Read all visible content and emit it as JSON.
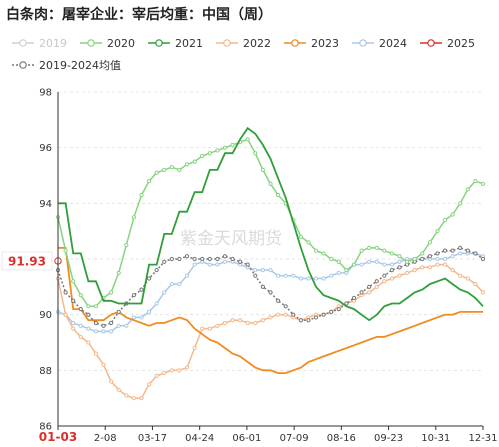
{
  "chart_data": {
    "type": "line",
    "title": "白条肉：屠宰企业：宰后均重：中国（周）",
    "watermark": "紫金天风期货",
    "ylim": [
      86,
      98
    ],
    "yticks": [
      86,
      88,
      90,
      92,
      94,
      96,
      98
    ],
    "xticks": [
      "01-03",
      "2-08",
      "03-17",
      "04-24",
      "06-01",
      "07-09",
      "08-16",
      "09-23",
      "10-31",
      "12-31"
    ],
    "highlight": {
      "x_label": "01-03",
      "y_label": "91.93",
      "color": "#d9302c"
    },
    "series": [
      {
        "name": "2019",
        "color": "#cfcfcf",
        "dash": "none",
        "marker": "circle",
        "values": []
      },
      {
        "name": "2020",
        "color": "#86d47f",
        "dash": "none",
        "marker": "circle",
        "values": [
          93.5,
          92.3,
          91.2,
          90.7,
          90.3,
          90.3,
          90.6,
          90.8,
          91.5,
          92.5,
          93.5,
          94.3,
          94.8,
          95.1,
          95.2,
          95.3,
          95.2,
          95.4,
          95.5,
          95.7,
          95.8,
          95.9,
          96.0,
          96.1,
          96.2,
          96.3,
          95.8,
          95.2,
          94.7,
          94.3,
          94.0,
          93.4,
          92.8,
          92.6,
          92.3,
          92.2,
          92.0,
          91.9,
          91.6,
          91.8,
          92.3,
          92.4,
          92.4,
          92.3,
          92.2,
          92.1,
          91.9,
          92.0,
          92.2,
          92.6,
          93.0,
          93.4,
          93.6,
          94.0,
          94.5,
          94.8,
          94.7
        ]
      },
      {
        "name": "2021",
        "color": "#2f9e3a",
        "dash": "none",
        "marker": "none",
        "values": [
          94.0,
          94.0,
          92.2,
          92.2,
          91.2,
          91.2,
          90.5,
          90.5,
          90.4,
          90.4,
          90.4,
          90.4,
          91.8,
          91.8,
          92.9,
          92.9,
          93.7,
          93.7,
          94.4,
          94.4,
          95.2,
          95.2,
          95.8,
          95.8,
          96.3,
          96.7,
          96.5,
          96.1,
          95.6,
          94.9,
          94.2,
          93.3,
          92.4,
          91.6,
          91.0,
          90.7,
          90.6,
          90.5,
          90.3,
          90.2,
          90.0,
          89.8,
          90.0,
          90.3,
          90.4,
          90.4,
          90.6,
          90.8,
          90.9,
          91.1,
          91.2,
          91.3,
          91.1,
          90.9,
          90.8,
          90.6,
          90.3
        ]
      },
      {
        "name": "2022",
        "color": "#f5b88a",
        "dash": "none",
        "marker": "circle",
        "values": [
          91.3,
          90.0,
          89.5,
          89.2,
          89.0,
          88.6,
          88.2,
          87.6,
          87.3,
          87.1,
          87.0,
          87.0,
          87.5,
          87.8,
          87.9,
          88.0,
          88.0,
          88.1,
          88.8,
          89.5,
          89.5,
          89.6,
          89.7,
          89.8,
          89.8,
          89.7,
          89.7,
          89.8,
          89.9,
          90.0,
          90.0,
          89.9,
          89.8,
          89.9,
          90.0,
          90.0,
          90.1,
          90.3,
          90.4,
          90.5,
          90.7,
          90.8,
          91.0,
          91.2,
          91.3,
          91.4,
          91.5,
          91.6,
          91.7,
          91.7,
          91.8,
          91.8,
          91.6,
          91.4,
          91.3,
          91.1,
          90.8
        ]
      },
      {
        "name": "2023",
        "color": "#f08c1e",
        "dash": "none",
        "marker": "none",
        "values": [
          92.4,
          92.4,
          90.2,
          90.2,
          89.8,
          89.8,
          89.8,
          90.0,
          90.1,
          89.9,
          89.8,
          89.7,
          89.6,
          89.7,
          89.7,
          89.8,
          89.9,
          89.8,
          89.5,
          89.3,
          89.1,
          89.0,
          88.8,
          88.6,
          88.5,
          88.3,
          88.1,
          88.0,
          88.0,
          87.9,
          87.9,
          88.0,
          88.1,
          88.3,
          88.4,
          88.5,
          88.6,
          88.7,
          88.8,
          88.9,
          89.0,
          89.1,
          89.2,
          89.2,
          89.3,
          89.4,
          89.5,
          89.6,
          89.7,
          89.8,
          89.9,
          90.0,
          90.0,
          90.1,
          90.1,
          90.1,
          90.1
        ]
      },
      {
        "name": "2024",
        "color": "#a9c8e8",
        "dash": "none",
        "marker": "circle",
        "values": [
          90.1,
          90.0,
          89.7,
          89.6,
          89.5,
          89.4,
          89.4,
          89.4,
          89.6,
          89.6,
          89.9,
          89.9,
          90.1,
          90.4,
          90.8,
          91.1,
          91.1,
          91.4,
          91.8,
          91.9,
          91.8,
          91.8,
          91.9,
          91.9,
          91.8,
          91.7,
          91.6,
          91.6,
          91.6,
          91.4,
          91.4,
          91.4,
          91.3,
          91.3,
          91.3,
          91.3,
          91.4,
          91.5,
          91.5,
          91.8,
          91.8,
          91.9,
          91.9,
          91.8,
          91.8,
          91.9,
          92.0,
          92.0,
          92.0,
          92.0,
          92.0,
          92.0,
          92.1,
          92.2,
          92.2,
          92.2,
          92.1
        ]
      },
      {
        "name": "2025",
        "color": "#d9302c",
        "dash": "none",
        "marker": "circle",
        "values": [
          91.93
        ]
      },
      {
        "name": "2019-2024均值",
        "color": "#777777",
        "dash": "2,2",
        "marker": "circle",
        "values": [
          91.6,
          90.8,
          90.5,
          90.2,
          90.0,
          89.7,
          89.6,
          89.7,
          90.1,
          90.4,
          90.7,
          90.9,
          91.3,
          91.6,
          91.9,
          92.0,
          92.0,
          92.1,
          92.0,
          92.0,
          92.0,
          92.0,
          92.1,
          92.0,
          91.9,
          91.8,
          91.4,
          91.0,
          90.8,
          90.5,
          90.3,
          90.0,
          89.8,
          89.8,
          89.9,
          90.0,
          90.1,
          90.2,
          90.4,
          90.6,
          90.8,
          91.0,
          91.2,
          91.4,
          91.6,
          91.7,
          91.8,
          91.9,
          92.0,
          92.1,
          92.2,
          92.3,
          92.3,
          92.4,
          92.3,
          92.2,
          92.0
        ]
      }
    ],
    "legend_position": "top",
    "grid": "horizontal"
  }
}
